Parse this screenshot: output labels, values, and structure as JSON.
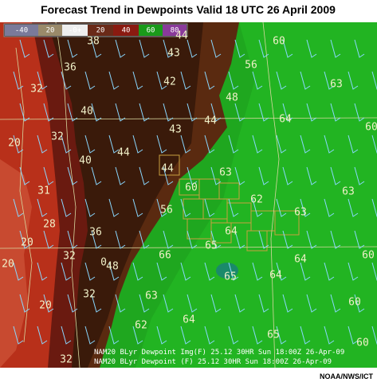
{
  "header": {
    "title": "Forecast Trend in Dewpoints Valid 18 UTC 26 April 2009"
  },
  "legend": {
    "labels": [
      "-40",
      "20",
      "-0+",
      "20",
      "40",
      "60",
      "80"
    ]
  },
  "map": {
    "labels": [
      "38",
      "44",
      "60",
      "36",
      "43",
      "56",
      "63",
      "32",
      "42",
      "48",
      "40",
      "64",
      "60",
      "32",
      "44",
      "43",
      "20",
      "44",
      "40",
      "44",
      "63",
      "63",
      "31",
      "60",
      "62",
      "28",
      "56",
      "63",
      "20",
      "36",
      "64",
      "65",
      "32",
      "0",
      "48",
      "66",
      "64",
      "20",
      "65",
      "64",
      "60",
      "32",
      "63",
      "20",
      "60",
      "64",
      "62",
      "65",
      "60",
      "32"
    ]
  },
  "footer": {
    "lines": [
      "NAM20 BLyr Dewpoint Img(F)  25.12  30HR Sun 18:00Z 26-Apr-09",
      "NAM20 BLyr Dewpoint (F)  25.12  30HR Sun 18:00Z 26-Apr-09"
    ],
    "credit": "NOAA/NWS/ICT"
  }
}
